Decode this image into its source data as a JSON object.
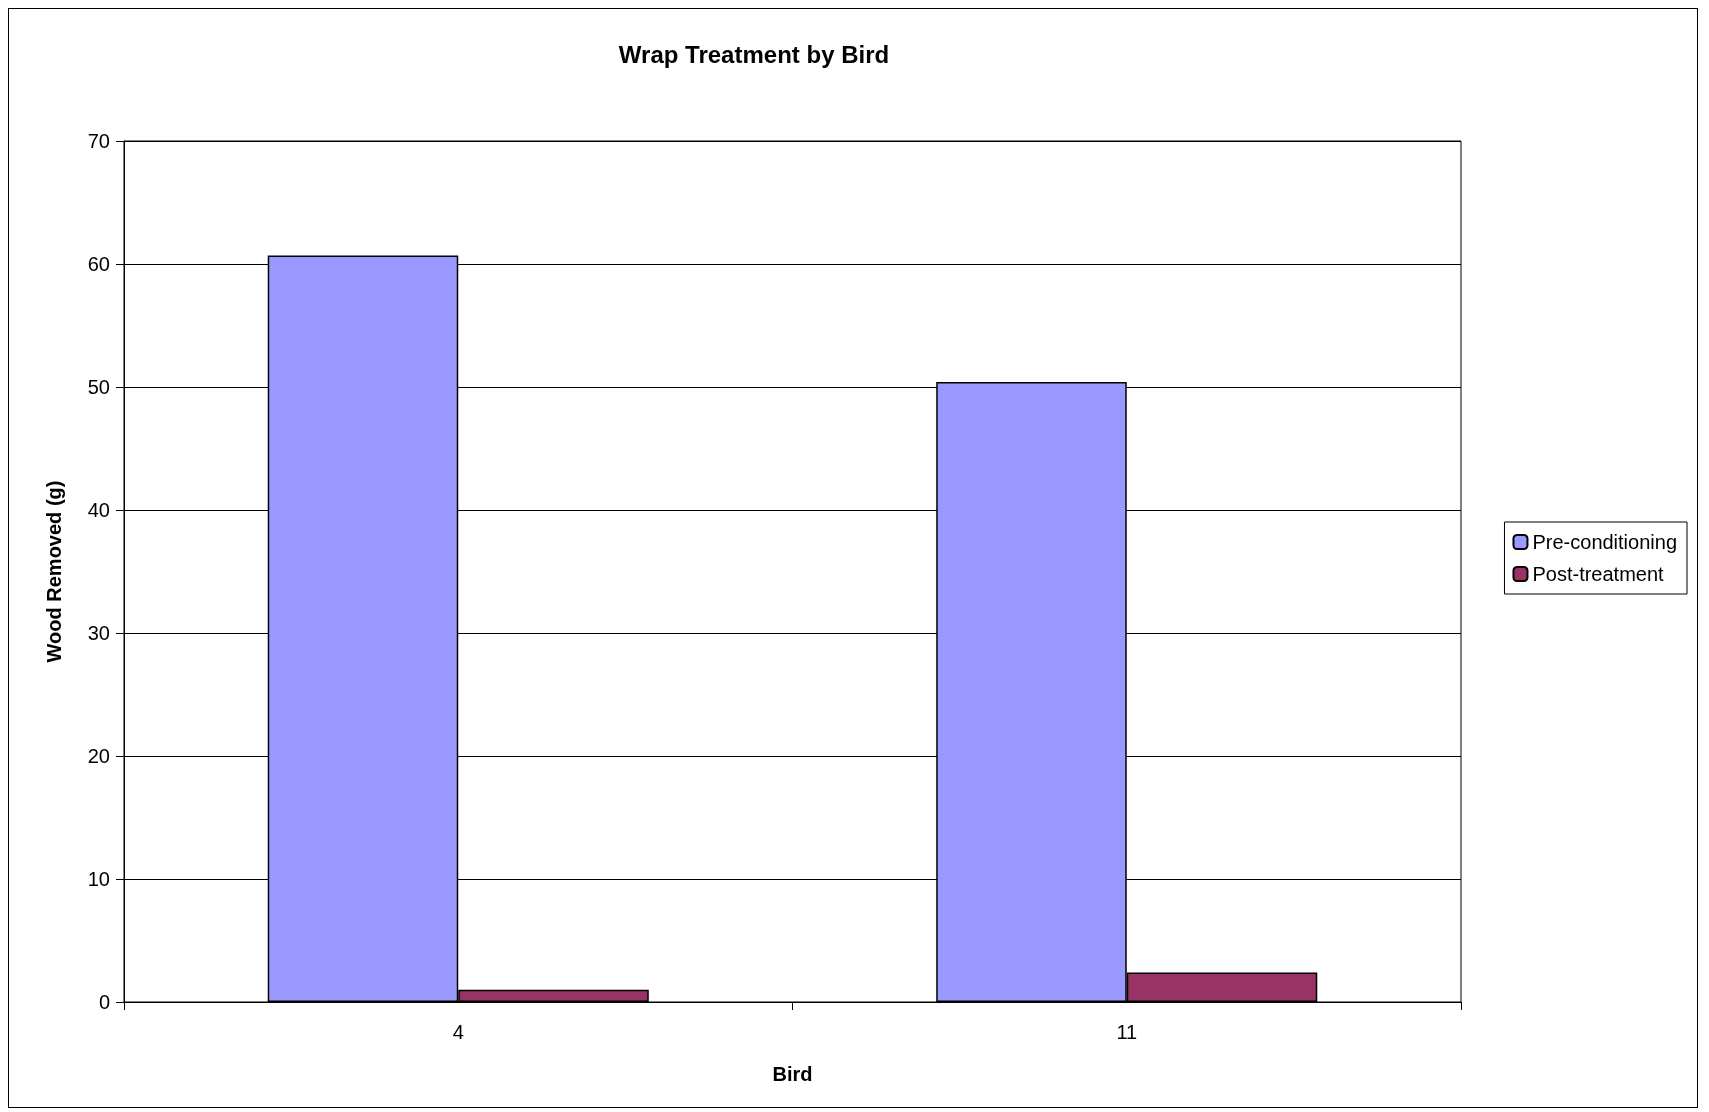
{
  "chart_data": {
    "type": "bar",
    "title": "Wrap Treatment by Bird",
    "xlabel": "Bird",
    "ylabel": "Wood Removed (g)",
    "categories": [
      "4",
      "11"
    ],
    "series": [
      {
        "name": "Pre-conditioning",
        "color": "#9999ff",
        "values": [
          60.7,
          50.4
        ]
      },
      {
        "name": "Post-treatment",
        "color": "#993366",
        "values": [
          1.0,
          2.4
        ]
      }
    ],
    "ylim": [
      0,
      70
    ],
    "yticks": [
      0,
      10,
      20,
      30,
      40,
      50,
      60,
      70
    ],
    "grid": "y",
    "legend": "right"
  }
}
